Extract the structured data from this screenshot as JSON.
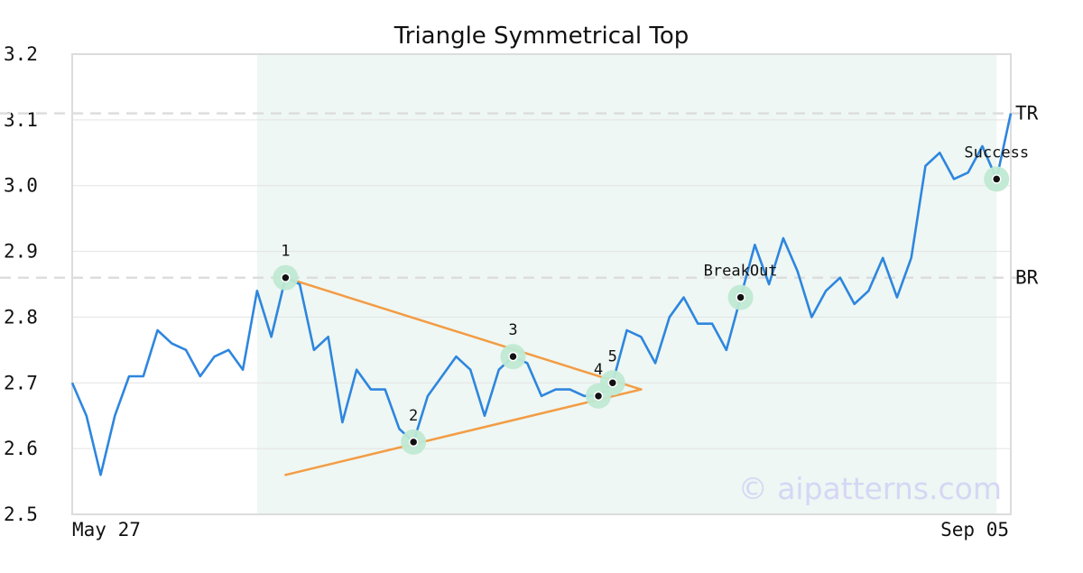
{
  "chart_data": {
    "type": "line",
    "title": "Triangle Symmetrical Top",
    "xlabel": "",
    "ylabel": "",
    "ylim": [
      2.5,
      3.2
    ],
    "yticks": [
      2.5,
      2.6,
      2.7,
      2.8,
      2.9,
      3.0,
      3.1,
      3.2
    ],
    "ytick_labels": [
      "2.5",
      "2.6",
      "2.7",
      "2.8",
      "2.9",
      "3.0",
      "3.1",
      "3.2"
    ],
    "x_start_label": "May 27",
    "x_end_label": "Sep 05",
    "grid": "horizontal",
    "series": [
      {
        "values": [
          2.7,
          2.65,
          2.56,
          2.65,
          2.71,
          2.71,
          2.78,
          2.76,
          2.75,
          2.71,
          2.74,
          2.75,
          2.72,
          2.84,
          2.77,
          2.86,
          2.85,
          2.75,
          2.77,
          2.64,
          2.72,
          2.69,
          2.69,
          2.63,
          2.61,
          2.68,
          2.71,
          2.74,
          2.72,
          2.65,
          2.72,
          2.74,
          2.73,
          2.68,
          2.69,
          2.69,
          2.68,
          2.68,
          2.7,
          2.78,
          2.77,
          2.73,
          2.8,
          2.83,
          2.79,
          2.79,
          2.75,
          2.83,
          2.91,
          2.85,
          2.92,
          2.87,
          2.8,
          2.84,
          2.86,
          2.82,
          2.84,
          2.89,
          2.83,
          2.89,
          3.03,
          3.05,
          3.01,
          3.02,
          3.06,
          3.01,
          3.11
        ],
        "color": "#2e86de"
      }
    ],
    "highlight_range": [
      13,
      65
    ],
    "highlight_color": "#eef7f3",
    "reference_lines": [
      {
        "label": "TR",
        "value": 3.11
      },
      {
        "label": "BR",
        "value": 2.86
      }
    ],
    "triangle": {
      "color": "#f39c45",
      "upper": [
        [
          15,
          2.86
        ],
        [
          40,
          2.69
        ]
      ],
      "lower": [
        [
          15,
          2.56
        ],
        [
          40,
          2.69
        ]
      ]
    },
    "points": [
      {
        "label": "1",
        "index": 15,
        "value": 2.86,
        "label_pos": "above"
      },
      {
        "label": "2",
        "index": 24,
        "value": 2.61,
        "label_pos": "above"
      },
      {
        "label": "3",
        "index": 31,
        "value": 2.74,
        "label_pos": "above"
      },
      {
        "label": "4",
        "index": 37,
        "value": 2.68,
        "label_pos": "above"
      },
      {
        "label": "5",
        "index": 38,
        "value": 2.7,
        "label_pos": "above"
      },
      {
        "label": "BreakOut",
        "index": 47,
        "value": 2.83,
        "label_pos": "above"
      },
      {
        "label": "Success",
        "index": 65,
        "value": 3.01,
        "label_pos": "above"
      }
    ],
    "marker_halo_color": "#bfe9d3",
    "watermark": "© aipatterns.com",
    "watermark_color": "#d6d6f5"
  }
}
